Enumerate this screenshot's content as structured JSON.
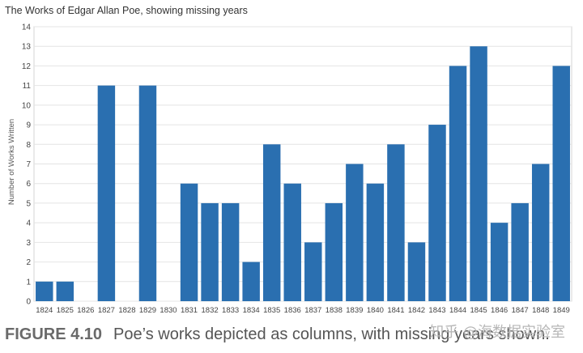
{
  "caption": {
    "figure_label": "FIGURE 4.10",
    "text": "Poe’s works depicted as columns, with missing years shown."
  },
  "watermark": "知乎 @海数据实验室",
  "colors": {
    "bar": "#2a6fb0",
    "grid": "#e4e4e4",
    "axis_text": "#444444"
  },
  "chart_data": {
    "type": "bar",
    "title": "The Works of Edgar Allan Poe, showing missing years",
    "xlabel": "",
    "ylabel": "Number of Works Written",
    "ylim": [
      0,
      14
    ],
    "yticks": [
      0,
      1,
      2,
      3,
      4,
      5,
      6,
      7,
      8,
      9,
      10,
      11,
      12,
      13,
      14
    ],
    "grid": true,
    "categories": [
      "1824",
      "1825",
      "1826",
      "1827",
      "1828",
      "1829",
      "1830",
      "1831",
      "1832",
      "1833",
      "1834",
      "1835",
      "1836",
      "1837",
      "1838",
      "1839",
      "1840",
      "1841",
      "1842",
      "1843",
      "1844",
      "1845",
      "1846",
      "1847",
      "1848",
      "1849"
    ],
    "values": [
      1,
      1,
      0,
      11,
      0,
      11,
      0,
      6,
      5,
      5,
      2,
      8,
      6,
      3,
      5,
      7,
      6,
      8,
      3,
      9,
      12,
      13,
      4,
      5,
      7,
      12
    ]
  }
}
